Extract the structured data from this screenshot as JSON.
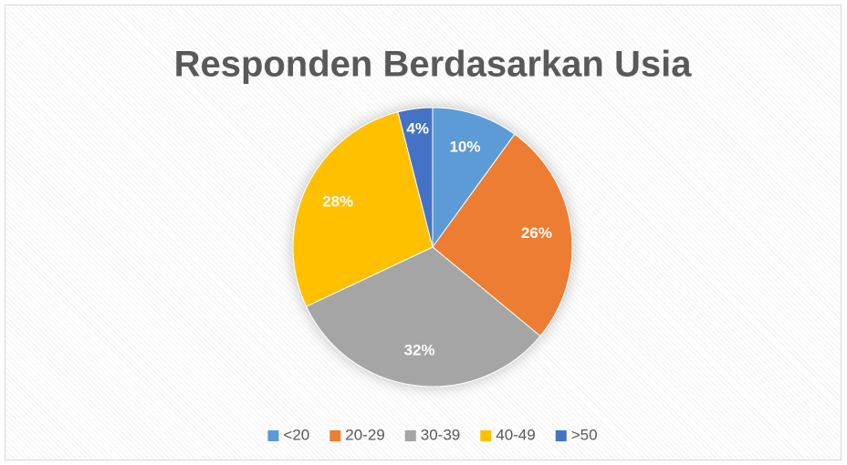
{
  "chart_data": {
    "type": "pie",
    "title": "Responden Berdasarkan Usia",
    "categories": [
      "<20",
      "20-29",
      "30-39",
      "40-49",
      ">50"
    ],
    "values": [
      10,
      26,
      32,
      28,
      4
    ],
    "value_labels": [
      "10%",
      "26%",
      "32%",
      "28%",
      "4%"
    ],
    "colors": [
      "#5b9bd5",
      "#ed7d31",
      "#a5a5a5",
      "#ffc000",
      "#4472c4"
    ],
    "legend": "bottom"
  }
}
